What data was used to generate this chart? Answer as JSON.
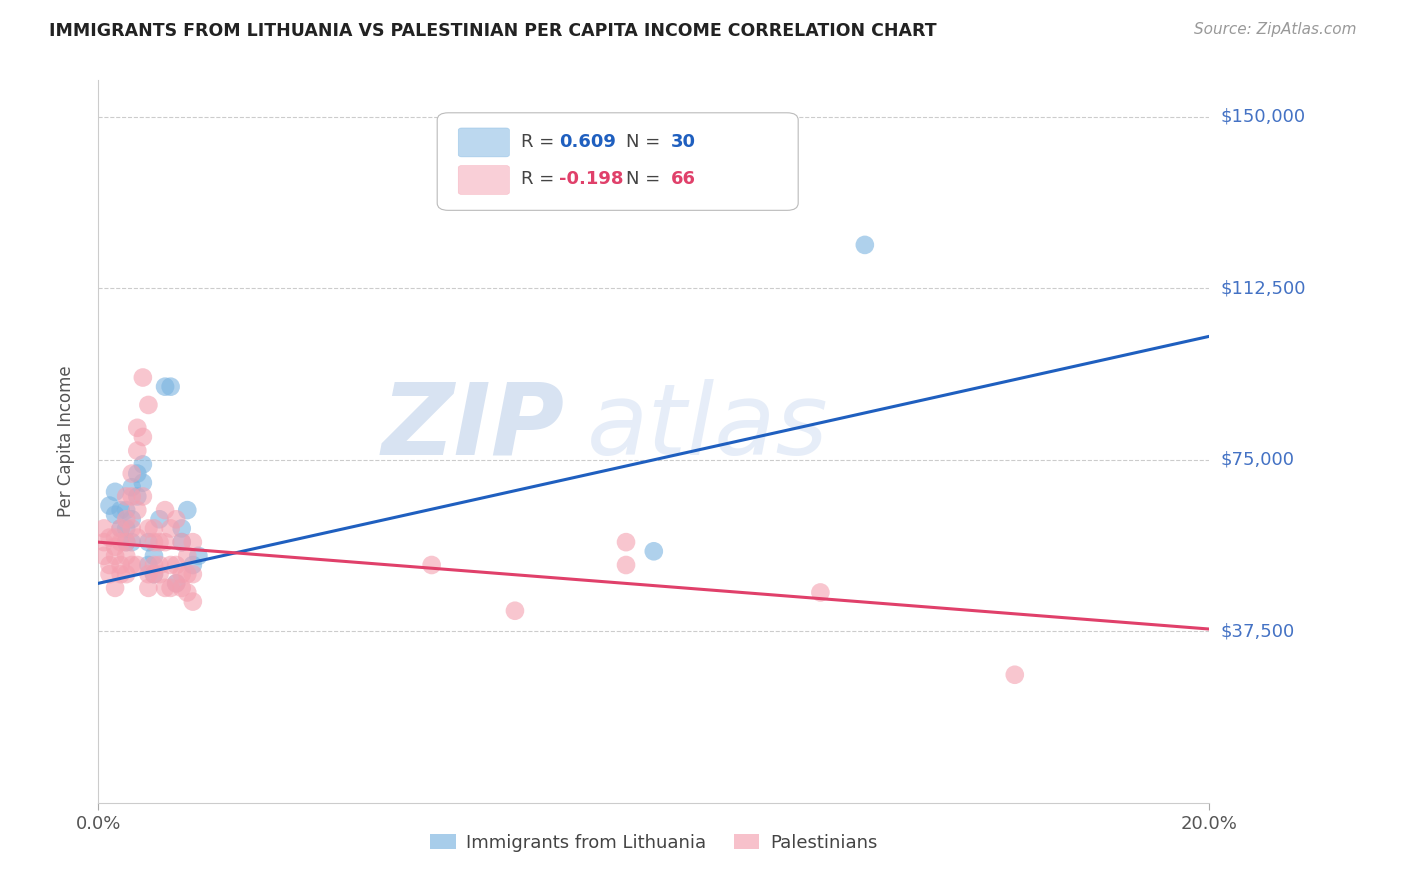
{
  "title": "IMMIGRANTS FROM LITHUANIA VS PALESTINIAN PER CAPITA INCOME CORRELATION CHART",
  "source": "Source: ZipAtlas.com",
  "ylabel": "Per Capita Income",
  "yticks": [
    0,
    37500,
    75000,
    112500,
    150000
  ],
  "ytick_labels": [
    "",
    "$37,500",
    "$75,000",
    "$112,500",
    "$150,000"
  ],
  "ytick_color": "#4472c4",
  "xmin": 0.0,
  "xmax": 0.2,
  "ymin": 15000,
  "ymax": 158000,
  "blue_color": "#7ab3e0",
  "pink_color": "#f4a0b0",
  "trend_blue": "#1f5fbf",
  "trend_pink": "#e0406a",
  "watermark_zip": "ZIP",
  "watermark_atlas": "atlas",
  "blue_scatter": [
    [
      0.002,
      65000
    ],
    [
      0.003,
      63000
    ],
    [
      0.003,
      68000
    ],
    [
      0.004,
      60000
    ],
    [
      0.004,
      64000
    ],
    [
      0.005,
      57000
    ],
    [
      0.005,
      64000
    ],
    [
      0.005,
      60000
    ],
    [
      0.006,
      69000
    ],
    [
      0.006,
      62000
    ],
    [
      0.006,
      57000
    ],
    [
      0.007,
      72000
    ],
    [
      0.007,
      67000
    ],
    [
      0.008,
      74000
    ],
    [
      0.008,
      70000
    ],
    [
      0.009,
      57000
    ],
    [
      0.009,
      52000
    ],
    [
      0.01,
      54000
    ],
    [
      0.01,
      50000
    ],
    [
      0.011,
      62000
    ],
    [
      0.012,
      91000
    ],
    [
      0.013,
      91000
    ],
    [
      0.014,
      48000
    ],
    [
      0.015,
      60000
    ],
    [
      0.015,
      57000
    ],
    [
      0.016,
      64000
    ],
    [
      0.017,
      52000
    ],
    [
      0.018,
      54000
    ],
    [
      0.1,
      55000
    ],
    [
      0.138,
      122000
    ]
  ],
  "pink_scatter": [
    [
      0.001,
      57000
    ],
    [
      0.001,
      54000
    ],
    [
      0.001,
      60000
    ],
    [
      0.002,
      58000
    ],
    [
      0.002,
      50000
    ],
    [
      0.002,
      52000
    ],
    [
      0.003,
      58000
    ],
    [
      0.003,
      54000
    ],
    [
      0.003,
      56000
    ],
    [
      0.003,
      47000
    ],
    [
      0.004,
      60000
    ],
    [
      0.004,
      57000
    ],
    [
      0.004,
      52000
    ],
    [
      0.004,
      50000
    ],
    [
      0.005,
      67000
    ],
    [
      0.005,
      62000
    ],
    [
      0.005,
      57000
    ],
    [
      0.005,
      54000
    ],
    [
      0.005,
      50000
    ],
    [
      0.006,
      72000
    ],
    [
      0.006,
      67000
    ],
    [
      0.006,
      60000
    ],
    [
      0.006,
      52000
    ],
    [
      0.007,
      82000
    ],
    [
      0.007,
      77000
    ],
    [
      0.007,
      64000
    ],
    [
      0.007,
      58000
    ],
    [
      0.007,
      52000
    ],
    [
      0.008,
      93000
    ],
    [
      0.008,
      80000
    ],
    [
      0.008,
      67000
    ],
    [
      0.009,
      87000
    ],
    [
      0.009,
      60000
    ],
    [
      0.009,
      50000
    ],
    [
      0.009,
      47000
    ],
    [
      0.01,
      60000
    ],
    [
      0.01,
      57000
    ],
    [
      0.01,
      52000
    ],
    [
      0.01,
      50000
    ],
    [
      0.011,
      57000
    ],
    [
      0.011,
      52000
    ],
    [
      0.011,
      50000
    ],
    [
      0.012,
      64000
    ],
    [
      0.012,
      57000
    ],
    [
      0.012,
      47000
    ],
    [
      0.013,
      60000
    ],
    [
      0.013,
      52000
    ],
    [
      0.013,
      47000
    ],
    [
      0.014,
      62000
    ],
    [
      0.014,
      52000
    ],
    [
      0.014,
      48000
    ],
    [
      0.015,
      57000
    ],
    [
      0.015,
      50000
    ],
    [
      0.015,
      47000
    ],
    [
      0.016,
      54000
    ],
    [
      0.016,
      50000
    ],
    [
      0.016,
      46000
    ],
    [
      0.017,
      57000
    ],
    [
      0.017,
      50000
    ],
    [
      0.017,
      44000
    ],
    [
      0.06,
      52000
    ],
    [
      0.075,
      42000
    ],
    [
      0.095,
      57000
    ],
    [
      0.095,
      52000
    ],
    [
      0.13,
      46000
    ],
    [
      0.165,
      28000
    ]
  ],
  "blue_trend_x": [
    0.0,
    0.2
  ],
  "blue_trend_y": [
    48000,
    102000
  ],
  "pink_trend_x": [
    0.0,
    0.2
  ],
  "pink_trend_y": [
    57000,
    38000
  ],
  "background_color": "#ffffff",
  "grid_color": "#cccccc"
}
